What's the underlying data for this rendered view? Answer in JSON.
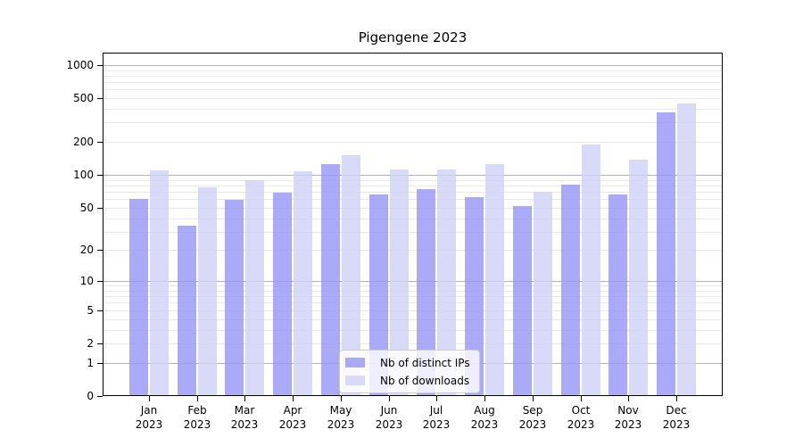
{
  "chart_data": {
    "type": "bar",
    "title": "Pigengene 2023",
    "categories": [
      "Jan",
      "Feb",
      "Mar",
      "Apr",
      "May",
      "Jun",
      "Jul",
      "Aug",
      "Sep",
      "Oct",
      "Nov",
      "Dec"
    ],
    "x_tick_second_line": "2023",
    "series": [
      {
        "name": "Nb of distinct IPs",
        "color": "rgba(149,149,246,0.8)",
        "values": [
          60,
          34,
          59,
          69,
          125,
          66,
          74,
          63,
          52,
          82,
          66,
          370
        ]
      },
      {
        "name": "Nb of downloads",
        "color": "rgba(208,208,246,0.8)",
        "values": [
          110,
          77,
          90,
          107,
          150,
          113,
          112,
          125,
          70,
          188,
          138,
          445
        ]
      }
    ],
    "y_axis": {
      "scale": "log1p",
      "ticks": [
        0,
        1,
        2,
        5,
        10,
        20,
        50,
        100,
        200,
        500,
        1000
      ],
      "ylim": [
        0,
        1295
      ],
      "major_gridlines": [
        1,
        10,
        100,
        1000
      ],
      "minor_gridline_decades": [
        1,
        10,
        100
      ]
    },
    "legend_position": "bottom-center",
    "grid": true
  },
  "colors": {
    "background": "#ffffff",
    "spine": "#000000",
    "text": "#000000",
    "minor_gridline": "#e8e8e8",
    "major_gridline": "#b3b3b3"
  }
}
